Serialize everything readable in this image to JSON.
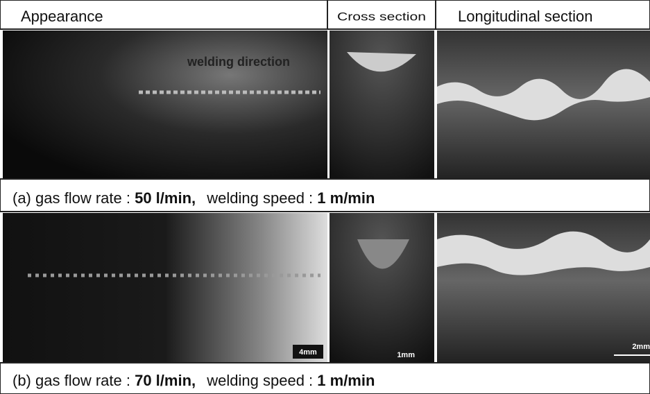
{
  "header": {
    "appearance": "Appearance",
    "cross_section": "Cross section",
    "longitudinal_section": "Longitudinal section"
  },
  "annotation": "welding direction",
  "rows": [
    {
      "caption": {
        "label": "(a)",
        "gas_label": "gas flow rate :",
        "gas_value": "50 l/min,",
        "speed_label": "welding speed :",
        "speed_value": "1 m/min"
      }
    },
    {
      "caption": {
        "label": "(b)",
        "gas_label": "gas flow rate :",
        "gas_value": "70 l/min,",
        "speed_label": "welding speed :",
        "speed_value": "1 m/min"
      },
      "scale_bars": {
        "appearance": "4mm",
        "cross_section": "1mm",
        "longitudinal_section": "2mm"
      }
    }
  ]
}
